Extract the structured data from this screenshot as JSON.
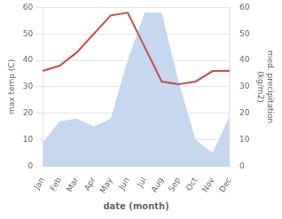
{
  "chart_data": {
    "type": "line",
    "categories": [
      "Jan",
      "Feb",
      "Mar",
      "Apr",
      "May",
      "Jun",
      "Jul",
      "Aug",
      "Sep",
      "Oct",
      "Nov",
      "Dec"
    ],
    "series": [
      {
        "type": "area",
        "color": "#c5d8f0",
        "axis": "y2",
        "values": [
          9,
          17,
          18,
          15,
          18,
          40,
          58,
          58,
          32,
          10,
          5,
          19
        ]
      },
      {
        "type": "line",
        "color": "#c0504d",
        "values": [
          36,
          38,
          43,
          50,
          57,
          58,
          45,
          32,
          31,
          32,
          36,
          36
        ]
      }
    ],
    "xlabel": "date (month)",
    "ylabel": "max temp (C)",
    "y2label": "med. precipitation\n(kg/m2)",
    "ylim": [
      0,
      60
    ],
    "yticks": [
      0,
      10,
      20,
      30,
      40,
      50,
      60
    ],
    "y2lim": [
      0,
      60
    ],
    "y2ticks": [
      0,
      10,
      20,
      30,
      40,
      50,
      60
    ],
    "grid": true
  }
}
